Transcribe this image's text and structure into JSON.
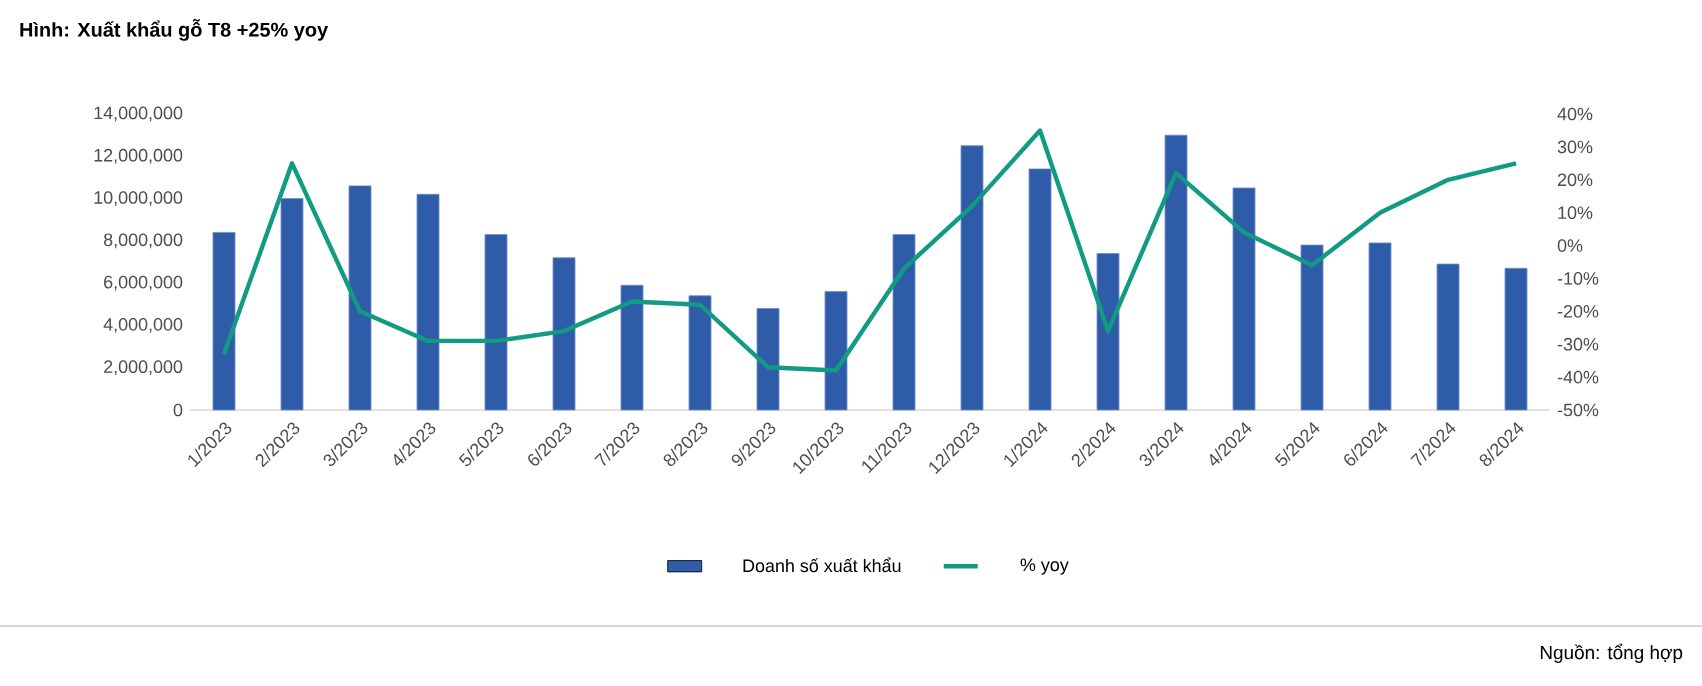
{
  "chart_data": {
    "type": "bar",
    "title": "Hình: Xuất khẩu gỗ T8 +25% yoy",
    "categories": [
      "1/2023",
      "2/2023",
      "3/2023",
      "4/2023",
      "5/2023",
      "6/2023",
      "7/2023",
      "8/2023",
      "9/2023",
      "10/2023",
      "11/2023",
      "12/2023",
      "1/2024",
      "2/2024",
      "3/2024",
      "4/2024",
      "5/2024",
      "6/2024",
      "7/2024",
      "8/2024"
    ],
    "series": [
      {
        "name": "Doanh số xuất khẩu",
        "color": "#2e5ca8",
        "values": [
          8400000,
          10000000,
          10600000,
          10200000,
          8300000,
          7200000,
          5900000,
          5400000,
          4800000,
          5600000,
          8300000,
          12500000,
          11400000,
          7400000,
          13000000,
          10500000,
          7800000,
          7900000,
          6900000,
          6700000
        ]
      },
      {
        "name": "% yoy",
        "type": "line",
        "axis": "y2",
        "color": "#119b82",
        "values": [
          -33,
          25,
          -20,
          -29,
          -29,
          -26,
          -17,
          -18,
          -37,
          -38,
          -7,
          12,
          35,
          -26,
          22,
          4,
          -6,
          10,
          20,
          25
        ]
      }
    ],
    "ylim": [
      0,
      14000000
    ],
    "yticks": [
      0,
      {
        "value": 2000000,
        "label": "2,000,000"
      },
      {
        "value": 4000000,
        "label": "4,000,000"
      },
      {
        "value": 6000000,
        "label": "6,000,000"
      },
      {
        "value": 8000000,
        "label": "8,000,000"
      },
      {
        "value": 10000000,
        "label": "10,000,000"
      },
      {
        "value": 12000000,
        "label": "12,000,000"
      },
      {
        "value": 14000000,
        "label": "14,000,000"
      }
    ],
    "y2lim": [
      -50,
      40
    ],
    "y2ticks": [
      {
        "value": -50,
        "label": "-50%"
      },
      {
        "value": -40,
        "label": "-40%"
      },
      {
        "value": -30,
        "label": "-30%"
      },
      {
        "value": -20,
        "label": "-20%"
      },
      {
        "value": -10,
        "label": "-10%"
      },
      {
        "value": 0,
        "label": "0%"
      },
      {
        "value": 10,
        "label": "10%"
      },
      {
        "value": 20,
        "label": "20%"
      },
      {
        "value": 30,
        "label": "30%"
      },
      {
        "value": 40,
        "label": "40%"
      }
    ],
    "legend": "bottom",
    "annotations": [
      "Nguồn: tổng hợp"
    ]
  }
}
